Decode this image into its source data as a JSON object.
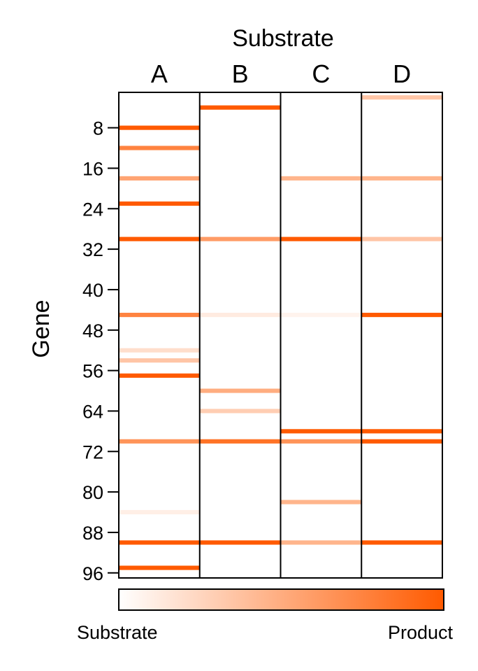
{
  "chart_data": {
    "type": "heatmap",
    "title": "Substrate",
    "xlabel": "Substrate",
    "ylabel": "Gene",
    "columns": [
      "A",
      "B",
      "C",
      "D"
    ],
    "y_ticks": [
      8,
      16,
      24,
      32,
      40,
      48,
      56,
      64,
      72,
      80,
      88,
      96
    ],
    "ylim": [
      1,
      97
    ],
    "colorbar": {
      "low_label": "Substrate",
      "high_label": "Product",
      "low_color": "#ffffff",
      "high_color": "#ff5a00"
    },
    "cells": [
      {
        "column": "A",
        "gene": 8,
        "value": 1.0
      },
      {
        "column": "A",
        "gene": 12,
        "value": 0.75
      },
      {
        "column": "A",
        "gene": 18,
        "value": 0.55
      },
      {
        "column": "A",
        "gene": 23,
        "value": 1.0
      },
      {
        "column": "A",
        "gene": 30,
        "value": 1.0
      },
      {
        "column": "A",
        "gene": 45,
        "value": 0.75
      },
      {
        "column": "A",
        "gene": 52,
        "value": 0.2
      },
      {
        "column": "A",
        "gene": 54,
        "value": 0.35
      },
      {
        "column": "A",
        "gene": 57,
        "value": 1.0
      },
      {
        "column": "A",
        "gene": 70,
        "value": 0.65
      },
      {
        "column": "A",
        "gene": 84,
        "value": 0.1
      },
      {
        "column": "A",
        "gene": 90,
        "value": 1.0
      },
      {
        "column": "A",
        "gene": 95,
        "value": 1.0
      },
      {
        "column": "B",
        "gene": 4,
        "value": 1.0
      },
      {
        "column": "B",
        "gene": 30,
        "value": 0.6
      },
      {
        "column": "B",
        "gene": 45,
        "value": 0.12
      },
      {
        "column": "B",
        "gene": 60,
        "value": 0.5
      },
      {
        "column": "B",
        "gene": 64,
        "value": 0.3
      },
      {
        "column": "B",
        "gene": 70,
        "value": 0.85
      },
      {
        "column": "B",
        "gene": 90,
        "value": 1.0
      },
      {
        "column": "C",
        "gene": 18,
        "value": 0.45
      },
      {
        "column": "C",
        "gene": 30,
        "value": 1.0
      },
      {
        "column": "C",
        "gene": 45,
        "value": 0.07
      },
      {
        "column": "C",
        "gene": 68,
        "value": 1.0
      },
      {
        "column": "C",
        "gene": 70,
        "value": 0.65
      },
      {
        "column": "C",
        "gene": 82,
        "value": 0.45
      },
      {
        "column": "C",
        "gene": 90,
        "value": 0.45
      },
      {
        "column": "D",
        "gene": 2,
        "value": 0.35
      },
      {
        "column": "D",
        "gene": 18,
        "value": 0.45
      },
      {
        "column": "D",
        "gene": 30,
        "value": 0.35
      },
      {
        "column": "D",
        "gene": 45,
        "value": 1.0
      },
      {
        "column": "D",
        "gene": 68,
        "value": 1.0
      },
      {
        "column": "D",
        "gene": 70,
        "value": 1.0
      },
      {
        "column": "D",
        "gene": 90,
        "value": 1.0
      }
    ]
  }
}
